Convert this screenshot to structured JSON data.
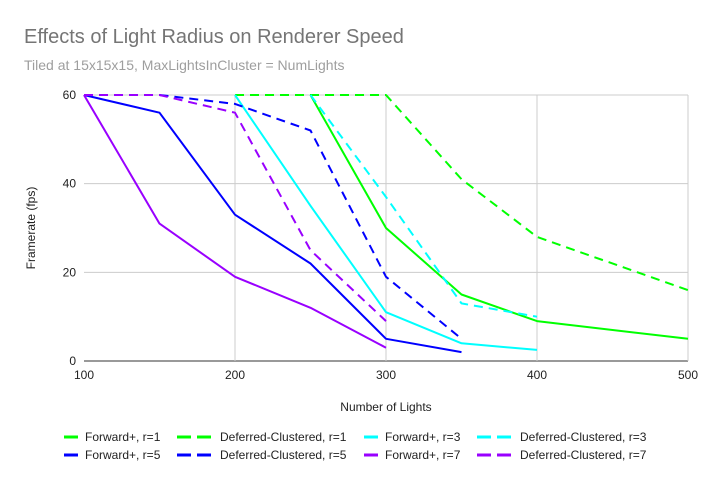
{
  "chart_data": {
    "type": "line",
    "title": "Effects of Light Radius on Renderer Speed",
    "subtitle": "Tiled at 15x15x15, MaxLightsInCluster = NumLights",
    "xlabel": "Number of Lights",
    "ylabel": "Framerate (fps)",
    "xlim": [
      100,
      500
    ],
    "ylim": [
      0,
      60
    ],
    "xticks": [
      "100",
      "200",
      "300",
      "400",
      "500"
    ],
    "yticks": [
      "0",
      "20",
      "40",
      "60"
    ],
    "grid": true,
    "legend_position": "bottom",
    "series": [
      {
        "name": "Forward+, r=1",
        "color": "#00ff00",
        "dash": false,
        "points": [
          [
            250,
            60
          ],
          [
            300,
            30
          ],
          [
            350,
            15
          ],
          [
            400,
            9
          ],
          [
            500,
            5
          ]
        ]
      },
      {
        "name": "Deferred-Clustered, r=1",
        "color": "#00ff00",
        "dash": true,
        "points": [
          [
            200,
            60
          ],
          [
            300,
            60
          ],
          [
            350,
            41
          ],
          [
            400,
            28
          ],
          [
            500,
            16
          ]
        ]
      },
      {
        "name": "Forward+, r=3",
        "color": "#00ffff",
        "dash": false,
        "points": [
          [
            200,
            60
          ],
          [
            250,
            35
          ],
          [
            300,
            11
          ],
          [
            350,
            4
          ],
          [
            400,
            2.5
          ]
        ]
      },
      {
        "name": "Deferred-Clustered, r=3",
        "color": "#00ffff",
        "dash": true,
        "points": [
          [
            250,
            60
          ],
          [
            300,
            37
          ],
          [
            350,
            13
          ],
          [
            400,
            10
          ]
        ]
      },
      {
        "name": "Forward+, r=5",
        "color": "#0000ff",
        "dash": false,
        "points": [
          [
            100,
            60
          ],
          [
            150,
            56
          ],
          [
            200,
            33
          ],
          [
            250,
            22
          ],
          [
            300,
            5
          ],
          [
            350,
            2
          ]
        ]
      },
      {
        "name": "Deferred-Clustered, r=5",
        "color": "#0000ff",
        "dash": true,
        "points": [
          [
            150,
            60
          ],
          [
            200,
            58
          ],
          [
            250,
            52
          ],
          [
            300,
            19
          ],
          [
            350,
            5
          ]
        ]
      },
      {
        "name": "Forward+, r=7",
        "color": "#9900ff",
        "dash": false,
        "points": [
          [
            100,
            60
          ],
          [
            150,
            31
          ],
          [
            200,
            19
          ],
          [
            250,
            12
          ],
          [
            300,
            3
          ]
        ]
      },
      {
        "name": "Deferred-Clustered, r=7",
        "color": "#9900ff",
        "dash": true,
        "points": [
          [
            100,
            60
          ],
          [
            150,
            60
          ],
          [
            200,
            56
          ],
          [
            250,
            25
          ],
          [
            300,
            9
          ]
        ]
      }
    ]
  }
}
